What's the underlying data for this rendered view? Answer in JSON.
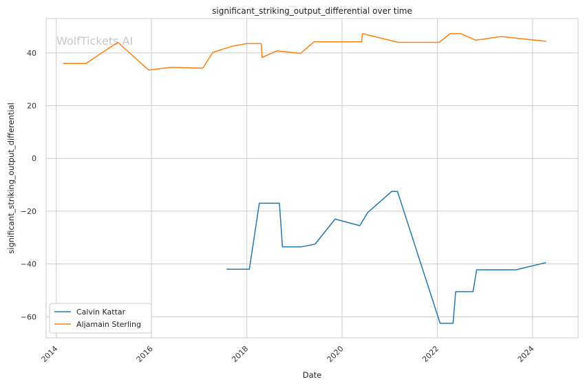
{
  "chart_data": {
    "type": "line",
    "title": "significant_striking_output_differential over time",
    "xlabel": "Date",
    "ylabel": "significant_striking_output_differential",
    "watermark": "WolfTickets.AI",
    "xlim": [
      "2013-10-15",
      "2024-12-15"
    ],
    "ylim": [
      -68,
      53
    ],
    "x_ticks": [
      "2014",
      "2016",
      "2018",
      "2020",
      "2022",
      "2024"
    ],
    "y_ticks": [
      40,
      20,
      0,
      -20,
      -40,
      -60
    ],
    "y_tick_labels": [
      "40",
      "20",
      "0",
      "−20",
      "−40",
      "−60"
    ],
    "grid": true,
    "legend_position": "lower-left",
    "series": [
      {
        "name": "Calvin Kattar",
        "color": "#1f77b4",
        "x": [
          "2017-07-29",
          "2018-01-20",
          "2018-04-07",
          "2018-09-08",
          "2018-10-01",
          "2019-02-23",
          "2019-06-08",
          "2019-11-09",
          "2020-05-16",
          "2020-07-16",
          "2021-01-16",
          "2021-03-01",
          "2022-01-22",
          "2022-05-01",
          "2022-05-21",
          "2022-10-01",
          "2022-10-29",
          "2023-02-01",
          "2023-08-26",
          "2024-04-13"
        ],
        "y": [
          -42,
          -42,
          -17,
          -17,
          -33.5,
          -33.5,
          -32.5,
          -23,
          -25.5,
          -20.5,
          -12.5,
          -12.5,
          -62.5,
          -62.5,
          -50.5,
          -50.5,
          -42.2,
          -42.2,
          -42.2,
          -39.5
        ]
      },
      {
        "name": "Aljamain Sterling",
        "color": "#ff7f0e",
        "x": [
          "2014-02-22",
          "2014-08-16",
          "2015-04-18",
          "2015-12-10",
          "2016-05-29",
          "2017-01-28",
          "2017-04-15",
          "2017-09-09",
          "2017-12-30",
          "2018-04-21",
          "2018-04-28",
          "2018-08-20",
          "2019-02-17",
          "2019-06-01",
          "2020-05-30",
          "2020-06-06",
          "2021-03-06",
          "2022-01-15",
          "2022-04-09",
          "2022-07-01",
          "2022-10-22",
          "2023-05-06",
          "2023-10-01",
          "2024-04-13"
        ],
        "y": [
          36,
          36,
          44,
          33.5,
          34.5,
          34.2,
          40.2,
          42.5,
          43.5,
          43.5,
          38.3,
          40.8,
          39.8,
          44.2,
          44.2,
          47.3,
          44,
          44,
          47.3,
          47.3,
          44.8,
          46.2,
          45.4,
          44.4
        ]
      }
    ]
  }
}
